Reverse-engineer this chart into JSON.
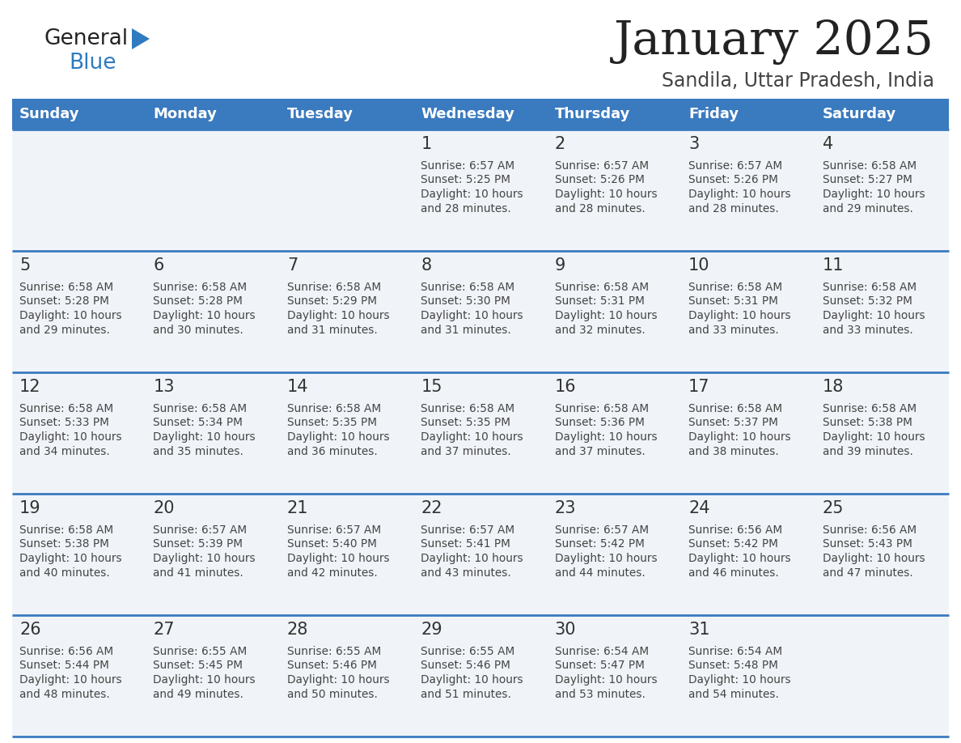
{
  "title": "January 2025",
  "subtitle": "Sandila, Uttar Pradesh, India",
  "days_of_week": [
    "Sunday",
    "Monday",
    "Tuesday",
    "Wednesday",
    "Thursday",
    "Friday",
    "Saturday"
  ],
  "header_bg": "#3a7abf",
  "header_text": "#ffffff",
  "row_bg": "#f0f4f8",
  "cell_text_color": "#444444",
  "day_num_color": "#333333",
  "border_color": "#3a7abf",
  "title_color": "#222222",
  "subtitle_color": "#444444",
  "logo_general_color": "#222222",
  "logo_blue_color": "#2e7bbf",
  "calendar_data": [
    [
      null,
      null,
      null,
      {
        "day": 1,
        "sunrise": "6:57 AM",
        "sunset": "5:25 PM",
        "daylight": "10 hours and 28 minutes."
      },
      {
        "day": 2,
        "sunrise": "6:57 AM",
        "sunset": "5:26 PM",
        "daylight": "10 hours and 28 minutes."
      },
      {
        "day": 3,
        "sunrise": "6:57 AM",
        "sunset": "5:26 PM",
        "daylight": "10 hours and 28 minutes."
      },
      {
        "day": 4,
        "sunrise": "6:58 AM",
        "sunset": "5:27 PM",
        "daylight": "10 hours and 29 minutes."
      }
    ],
    [
      {
        "day": 5,
        "sunrise": "6:58 AM",
        "sunset": "5:28 PM",
        "daylight": "10 hours and 29 minutes."
      },
      {
        "day": 6,
        "sunrise": "6:58 AM",
        "sunset": "5:28 PM",
        "daylight": "10 hours and 30 minutes."
      },
      {
        "day": 7,
        "sunrise": "6:58 AM",
        "sunset": "5:29 PM",
        "daylight": "10 hours and 31 minutes."
      },
      {
        "day": 8,
        "sunrise": "6:58 AM",
        "sunset": "5:30 PM",
        "daylight": "10 hours and 31 minutes."
      },
      {
        "day": 9,
        "sunrise": "6:58 AM",
        "sunset": "5:31 PM",
        "daylight": "10 hours and 32 minutes."
      },
      {
        "day": 10,
        "sunrise": "6:58 AM",
        "sunset": "5:31 PM",
        "daylight": "10 hours and 33 minutes."
      },
      {
        "day": 11,
        "sunrise": "6:58 AM",
        "sunset": "5:32 PM",
        "daylight": "10 hours and 33 minutes."
      }
    ],
    [
      {
        "day": 12,
        "sunrise": "6:58 AM",
        "sunset": "5:33 PM",
        "daylight": "10 hours and 34 minutes."
      },
      {
        "day": 13,
        "sunrise": "6:58 AM",
        "sunset": "5:34 PM",
        "daylight": "10 hours and 35 minutes."
      },
      {
        "day": 14,
        "sunrise": "6:58 AM",
        "sunset": "5:35 PM",
        "daylight": "10 hours and 36 minutes."
      },
      {
        "day": 15,
        "sunrise": "6:58 AM",
        "sunset": "5:35 PM",
        "daylight": "10 hours and 37 minutes."
      },
      {
        "day": 16,
        "sunrise": "6:58 AM",
        "sunset": "5:36 PM",
        "daylight": "10 hours and 37 minutes."
      },
      {
        "day": 17,
        "sunrise": "6:58 AM",
        "sunset": "5:37 PM",
        "daylight": "10 hours and 38 minutes."
      },
      {
        "day": 18,
        "sunrise": "6:58 AM",
        "sunset": "5:38 PM",
        "daylight": "10 hours and 39 minutes."
      }
    ],
    [
      {
        "day": 19,
        "sunrise": "6:58 AM",
        "sunset": "5:38 PM",
        "daylight": "10 hours and 40 minutes."
      },
      {
        "day": 20,
        "sunrise": "6:57 AM",
        "sunset": "5:39 PM",
        "daylight": "10 hours and 41 minutes."
      },
      {
        "day": 21,
        "sunrise": "6:57 AM",
        "sunset": "5:40 PM",
        "daylight": "10 hours and 42 minutes."
      },
      {
        "day": 22,
        "sunrise": "6:57 AM",
        "sunset": "5:41 PM",
        "daylight": "10 hours and 43 minutes."
      },
      {
        "day": 23,
        "sunrise": "6:57 AM",
        "sunset": "5:42 PM",
        "daylight": "10 hours and 44 minutes."
      },
      {
        "day": 24,
        "sunrise": "6:56 AM",
        "sunset": "5:42 PM",
        "daylight": "10 hours and 46 minutes."
      },
      {
        "day": 25,
        "sunrise": "6:56 AM",
        "sunset": "5:43 PM",
        "daylight": "10 hours and 47 minutes."
      }
    ],
    [
      {
        "day": 26,
        "sunrise": "6:56 AM",
        "sunset": "5:44 PM",
        "daylight": "10 hours and 48 minutes."
      },
      {
        "day": 27,
        "sunrise": "6:55 AM",
        "sunset": "5:45 PM",
        "daylight": "10 hours and 49 minutes."
      },
      {
        "day": 28,
        "sunrise": "6:55 AM",
        "sunset": "5:46 PM",
        "daylight": "10 hours and 50 minutes."
      },
      {
        "day": 29,
        "sunrise": "6:55 AM",
        "sunset": "5:46 PM",
        "daylight": "10 hours and 51 minutes."
      },
      {
        "day": 30,
        "sunrise": "6:54 AM",
        "sunset": "5:47 PM",
        "daylight": "10 hours and 53 minutes."
      },
      {
        "day": 31,
        "sunrise": "6:54 AM",
        "sunset": "5:48 PM",
        "daylight": "10 hours and 54 minutes."
      },
      null
    ]
  ]
}
